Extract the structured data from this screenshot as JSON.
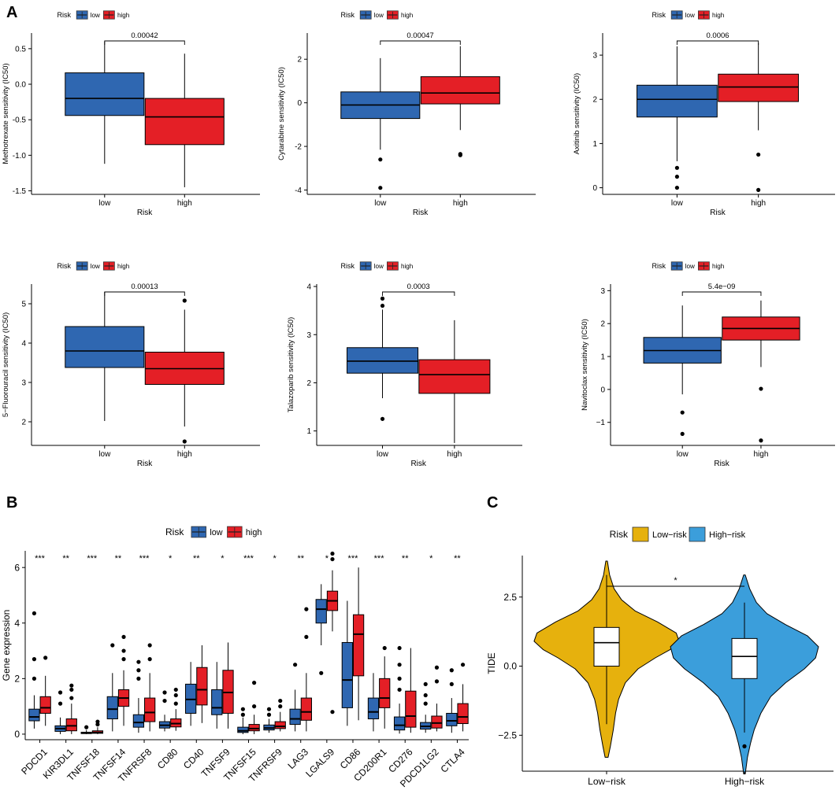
{
  "panel_labels": {
    "a": "A",
    "b": "B",
    "c": "C"
  },
  "legend": {
    "title": "Risk",
    "low": "low",
    "high": "high"
  },
  "colors": {
    "low": "#2f67b1",
    "high": "#e41f26",
    "low_risk": "#e6b10d",
    "high_risk": "#3b9edb"
  },
  "chart_data": [
    {
      "type": "boxplot",
      "id": "methotrexate",
      "ylabel": "Methotrexate sensitivity (IC50)",
      "xlabel": "Risk",
      "categories": [
        "low",
        "high"
      ],
      "p_value": "0.00042",
      "ylim": [
        -1.55,
        0.72
      ],
      "yticks": [
        {
          "v": 0.5,
          "label": "0.5"
        },
        {
          "v": 0.0,
          "label": "0.0"
        },
        {
          "v": -0.5,
          "label": "-0.5"
        },
        {
          "v": -1.0,
          "label": "-1.0"
        },
        {
          "v": -1.5,
          "label": "-1.5"
        }
      ],
      "boxes": [
        {
          "min": -1.12,
          "q1": -0.44,
          "median": -0.2,
          "q3": 0.16,
          "max": 0.6,
          "outliers": []
        },
        {
          "min": -1.45,
          "q1": -0.85,
          "median": -0.46,
          "q3": -0.2,
          "max": 0.43,
          "outliers": []
        }
      ]
    },
    {
      "type": "boxplot",
      "id": "cytarabine",
      "ylabel": "Cytarabine sensitivity (IC50)",
      "xlabel": "Risk",
      "categories": [
        "low",
        "high"
      ],
      "p_value": "0.00047",
      "ylim": [
        -4.2,
        3.2
      ],
      "yticks": [
        {
          "v": 2,
          "label": "2"
        },
        {
          "v": 0,
          "label": "0"
        },
        {
          "v": -2,
          "label": "-2"
        },
        {
          "v": -4,
          "label": "-4"
        }
      ],
      "boxes": [
        {
          "min": -2.15,
          "q1": -0.72,
          "median": -0.1,
          "q3": 0.5,
          "max": 2.05,
          "outliers": [
            -2.6,
            -3.9
          ]
        },
        {
          "min": -1.25,
          "q1": -0.05,
          "median": 0.45,
          "q3": 1.2,
          "max": 2.6,
          "outliers": [
            -2.35,
            -2.4
          ]
        }
      ]
    },
    {
      "type": "boxplot",
      "id": "axitinib",
      "ylabel": "Axitinib sensitivity (IC50)",
      "xlabel": "Risk",
      "categories": [
        "low",
        "high"
      ],
      "p_value": "0.0006",
      "ylim": [
        -0.15,
        3.5
      ],
      "yticks": [
        {
          "v": 3,
          "label": "3"
        },
        {
          "v": 2,
          "label": "2"
        },
        {
          "v": 1,
          "label": "1"
        },
        {
          "v": 0,
          "label": "0"
        }
      ],
      "boxes": [
        {
          "min": 0.6,
          "q1": 1.6,
          "median": 2.0,
          "q3": 2.32,
          "max": 3.2,
          "outliers": [
            0.45,
            0.25,
            0.0
          ]
        },
        {
          "min": 1.3,
          "q1": 1.95,
          "median": 2.28,
          "q3": 2.57,
          "max": 3.28,
          "outliers": [
            0.75,
            -0.05
          ]
        }
      ]
    },
    {
      "type": "boxplot",
      "id": "fluorouracil",
      "ylabel": "5−Fluorouracil sensitivity (IC50)",
      "xlabel": "Risk",
      "categories": [
        "low",
        "high"
      ],
      "p_value": "0.00013",
      "ylim": [
        1.4,
        5.5
      ],
      "yticks": [
        {
          "v": 5,
          "label": "5"
        },
        {
          "v": 4,
          "label": "4"
        },
        {
          "v": 3,
          "label": "3"
        },
        {
          "v": 2,
          "label": "2"
        }
      ],
      "boxes": [
        {
          "min": 2.02,
          "q1": 3.38,
          "median": 3.8,
          "q3": 4.42,
          "max": 5.3,
          "outliers": []
        },
        {
          "min": 1.88,
          "q1": 2.95,
          "median": 3.35,
          "q3": 3.77,
          "max": 4.85,
          "outliers": [
            5.08,
            1.5
          ]
        }
      ]
    },
    {
      "type": "boxplot",
      "id": "talazoparib",
      "ylabel": "Talazoparib sensitivity (IC50)",
      "xlabel": "Risk",
      "categories": [
        "low",
        "high"
      ],
      "p_value": "0.0003",
      "ylim": [
        0.7,
        4.05
      ],
      "yticks": [
        {
          "v": 4,
          "label": "4"
        },
        {
          "v": 3,
          "label": "3"
        },
        {
          "v": 2,
          "label": "2"
        },
        {
          "v": 1,
          "label": "1"
        }
      ],
      "boxes": [
        {
          "min": 1.68,
          "q1": 2.2,
          "median": 2.45,
          "q3": 2.73,
          "max": 3.52,
          "outliers": [
            3.75,
            3.6,
            1.25
          ]
        },
        {
          "min": 0.75,
          "q1": 1.78,
          "median": 2.17,
          "q3": 2.48,
          "max": 3.3,
          "outliers": []
        }
      ]
    },
    {
      "type": "boxplot",
      "id": "navitoclax",
      "ylabel": "Navitoclax sensitivity (IC50)",
      "xlabel": "Risk",
      "categories": [
        "low",
        "high"
      ],
      "p_value": "5.4e−09",
      "ylim": [
        -1.7,
        3.2
      ],
      "yticks": [
        {
          "v": 3,
          "label": "3"
        },
        {
          "v": 2,
          "label": "2"
        },
        {
          "v": 1,
          "label": "1"
        },
        {
          "v": 0,
          "label": "0"
        },
        {
          "v": -1,
          "label": "−1"
        }
      ],
      "boxes": [
        {
          "min": -0.15,
          "q1": 0.8,
          "median": 1.18,
          "q3": 1.58,
          "max": 2.55,
          "outliers": [
            -0.7,
            -1.35
          ]
        },
        {
          "min": 0.68,
          "q1": 1.5,
          "median": 1.85,
          "q3": 2.2,
          "max": 2.7,
          "outliers": [
            0.02,
            -1.55
          ]
        }
      ]
    },
    {
      "type": "grouped-boxplot",
      "id": "checkpoints",
      "ylabel": "Gene expression",
      "xlabel": "",
      "ylim": [
        -0.2,
        6.6
      ],
      "yticks": [
        {
          "v": 0,
          "label": "0"
        },
        {
          "v": 2,
          "label": "2"
        },
        {
          "v": 4,
          "label": "4"
        },
        {
          "v": 6,
          "label": "6"
        }
      ],
      "genes": [
        {
          "name": "PDCD1",
          "sig": "***",
          "low": {
            "min": 0.2,
            "q1": 0.48,
            "median": 0.62,
            "q3": 0.9,
            "max": 1.4,
            "outliers": [
              2.0,
              2.7,
              4.35
            ]
          },
          "high": {
            "min": 0.3,
            "q1": 0.75,
            "median": 0.95,
            "q3": 1.35,
            "max": 2.1,
            "outliers": [
              2.75
            ]
          }
        },
        {
          "name": "KIR3DL1",
          "sig": "**",
          "low": {
            "min": 0.0,
            "q1": 0.1,
            "median": 0.2,
            "q3": 0.3,
            "max": 0.6,
            "outliers": [
              1.1,
              1.5
            ]
          },
          "high": {
            "min": 0.0,
            "q1": 0.12,
            "median": 0.3,
            "q3": 0.55,
            "max": 1.1,
            "outliers": [
              1.3,
              1.6,
              1.75
            ]
          }
        },
        {
          "name": "TNFSF18",
          "sig": "***",
          "low": {
            "min": 0.0,
            "q1": 0.02,
            "median": 0.04,
            "q3": 0.07,
            "max": 0.15,
            "outliers": [
              0.25
            ]
          },
          "high": {
            "min": 0.0,
            "q1": 0.03,
            "median": 0.06,
            "q3": 0.12,
            "max": 0.25,
            "outliers": [
              0.35,
              0.45
            ]
          }
        },
        {
          "name": "TNFSF14",
          "sig": "**",
          "low": {
            "min": 0.1,
            "q1": 0.55,
            "median": 0.9,
            "q3": 1.35,
            "max": 2.2,
            "outliers": [
              3.2
            ]
          },
          "high": {
            "min": 0.3,
            "q1": 1.0,
            "median": 1.3,
            "q3": 1.6,
            "max": 2.3,
            "outliers": [
              2.7,
              3.0,
              3.5
            ]
          }
        },
        {
          "name": "TNFRSF8",
          "sig": "***",
          "low": {
            "min": 0.05,
            "q1": 0.25,
            "median": 0.42,
            "q3": 0.7,
            "max": 1.3,
            "outliers": [
              2.0,
              2.3,
              2.6
            ]
          },
          "high": {
            "min": 0.1,
            "q1": 0.45,
            "median": 0.78,
            "q3": 1.3,
            "max": 2.2,
            "outliers": [
              2.7,
              3.2
            ]
          }
        },
        {
          "name": "CD80",
          "sig": "*",
          "low": {
            "min": 0.1,
            "q1": 0.22,
            "median": 0.32,
            "q3": 0.45,
            "max": 0.7,
            "outliers": [
              1.2,
              1.5
            ]
          },
          "high": {
            "min": 0.12,
            "q1": 0.26,
            "median": 0.38,
            "q3": 0.55,
            "max": 0.9,
            "outliers": [
              1.1,
              1.4,
              1.6
            ]
          }
        },
        {
          "name": "CD40",
          "sig": "**",
          "low": {
            "min": 0.3,
            "q1": 0.75,
            "median": 1.25,
            "q3": 1.8,
            "max": 2.6,
            "outliers": []
          },
          "high": {
            "min": 0.4,
            "q1": 1.05,
            "median": 1.6,
            "q3": 2.4,
            "max": 3.2,
            "outliers": []
          }
        },
        {
          "name": "TNFSF9",
          "sig": "*",
          "low": {
            "min": 0.2,
            "q1": 0.7,
            "median": 0.95,
            "q3": 1.6,
            "max": 2.6,
            "outliers": []
          },
          "high": {
            "min": 0.2,
            "q1": 0.75,
            "median": 1.5,
            "q3": 2.3,
            "max": 3.3,
            "outliers": []
          }
        },
        {
          "name": "TNFSF15",
          "sig": "***",
          "low": {
            "min": 0.0,
            "q1": 0.06,
            "median": 0.12,
            "q3": 0.25,
            "max": 0.6,
            "outliers": [
              0.7,
              0.9
            ]
          },
          "high": {
            "min": 0.0,
            "q1": 0.12,
            "median": 0.2,
            "q3": 0.35,
            "max": 0.7,
            "outliers": [
              1.0,
              1.85
            ]
          }
        },
        {
          "name": "TNFRSF9",
          "sig": "*",
          "low": {
            "min": 0.05,
            "q1": 0.15,
            "median": 0.22,
            "q3": 0.33,
            "max": 0.55,
            "outliers": [
              0.7,
              0.9
            ]
          },
          "high": {
            "min": 0.1,
            "q1": 0.2,
            "median": 0.28,
            "q3": 0.45,
            "max": 0.8,
            "outliers": [
              1.0,
              1.2
            ]
          }
        },
        {
          "name": "LAG3",
          "sig": "**",
          "low": {
            "min": 0.1,
            "q1": 0.35,
            "median": 0.55,
            "q3": 0.9,
            "max": 1.6,
            "outliers": [
              2.5
            ]
          },
          "high": {
            "min": 0.1,
            "q1": 0.5,
            "median": 0.8,
            "q3": 1.3,
            "max": 2.2,
            "outliers": [
              3.5,
              4.5
            ]
          }
        },
        {
          "name": "LGALS9",
          "sig": "*",
          "low": {
            "min": 3.2,
            "q1": 4.0,
            "median": 4.5,
            "q3": 4.85,
            "max": 5.4,
            "outliers": [
              2.2
            ]
          },
          "high": {
            "min": 3.7,
            "q1": 4.45,
            "median": 4.8,
            "q3": 5.15,
            "max": 5.9,
            "outliers": [
              0.8,
              6.3,
              6.5
            ]
          }
        },
        {
          "name": "CD86",
          "sig": "***",
          "low": {
            "min": 0.3,
            "q1": 0.95,
            "median": 1.95,
            "q3": 3.3,
            "max": 4.8,
            "outliers": []
          },
          "high": {
            "min": 0.5,
            "q1": 2.1,
            "median": 3.6,
            "q3": 4.3,
            "max": 6.0,
            "outliers": []
          }
        },
        {
          "name": "CD200R1",
          "sig": "***",
          "low": {
            "min": 0.1,
            "q1": 0.55,
            "median": 0.8,
            "q3": 1.3,
            "max": 2.2,
            "outliers": []
          },
          "high": {
            "min": 0.2,
            "q1": 0.95,
            "median": 1.3,
            "q3": 2.0,
            "max": 2.8,
            "outliers": [
              3.1
            ]
          }
        },
        {
          "name": "CD276",
          "sig": "**",
          "low": {
            "min": 0.02,
            "q1": 0.15,
            "median": 0.32,
            "q3": 0.62,
            "max": 1.1,
            "outliers": [
              1.6,
              2.0,
              2.5,
              3.1
            ]
          },
          "high": {
            "min": 0.05,
            "q1": 0.25,
            "median": 0.65,
            "q3": 1.55,
            "max": 3.1,
            "outliers": []
          }
        },
        {
          "name": "PDCD1LG2",
          "sig": "*",
          "low": {
            "min": 0.05,
            "q1": 0.18,
            "median": 0.28,
            "q3": 0.42,
            "max": 0.7,
            "outliers": [
              1.1,
              1.4,
              1.8
            ]
          },
          "high": {
            "min": 0.1,
            "q1": 0.22,
            "median": 0.4,
            "q3": 0.65,
            "max": 1.1,
            "outliers": [
              1.9,
              2.4
            ]
          }
        },
        {
          "name": "CTLA4",
          "sig": "**",
          "low": {
            "min": 0.05,
            "q1": 0.3,
            "median": 0.48,
            "q3": 0.75,
            "max": 1.3,
            "outliers": [
              1.8,
              2.3
            ]
          },
          "high": {
            "min": 0.1,
            "q1": 0.38,
            "median": 0.62,
            "q3": 1.1,
            "max": 1.8,
            "outliers": [
              2.5
            ]
          }
        }
      ]
    },
    {
      "type": "violin",
      "id": "tide",
      "ylabel": "TIDE",
      "xlabel": "",
      "legend_title": "Risk",
      "categories": [
        "Low−risk",
        "High−risk"
      ],
      "significance": "*",
      "ylim": [
        -3.8,
        4.0
      ],
      "yticks": [
        {
          "v": 2.5,
          "label": "2.5"
        },
        {
          "v": 0.0,
          "label": "0.0"
        },
        {
          "v": -2.5,
          "label": "−2.5"
        }
      ],
      "violin_range": [
        [
          -3.3,
          3.8
        ],
        [
          -3.9,
          3.3
        ]
      ],
      "boxes": [
        {
          "min": -2.1,
          "q1": 0.0,
          "median": 0.85,
          "q3": 1.4,
          "max": 3.3,
          "outliers": []
        },
        {
          "min": -2.4,
          "q1": -0.45,
          "median": 0.35,
          "q3": 1.0,
          "max": 2.3,
          "outliers": [
            -2.9
          ]
        }
      ]
    }
  ]
}
